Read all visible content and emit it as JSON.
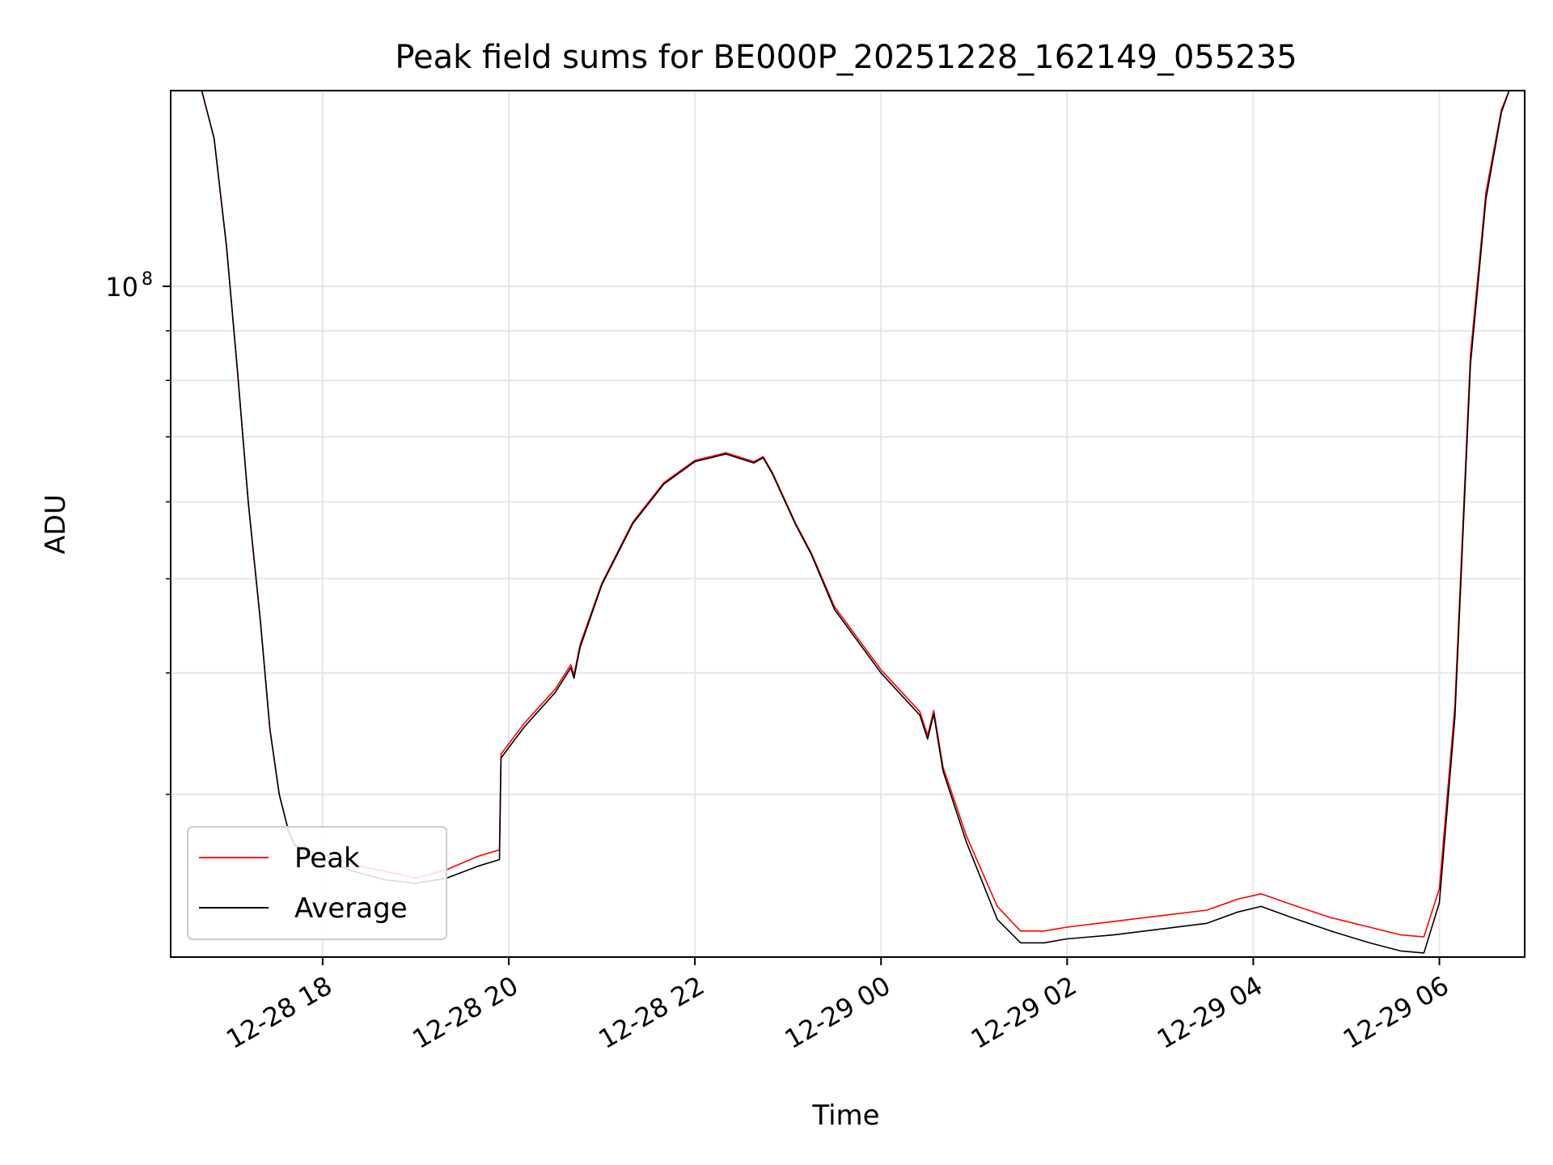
{
  "chart_data": {
    "type": "line",
    "title": "Peak field sums for BE000P_20251228_162149_055235",
    "xlabel": "Time",
    "ylabel": "ADU",
    "y_scale": "log",
    "ylim": [
      20400000,
      159000000
    ],
    "xlim": [
      "12-28 16:22",
      "12-29 06:55"
    ],
    "x_ticks": [
      "12-28 18",
      "12-28 20",
      "12-28 22",
      "12-29 00",
      "12-29 02",
      "12-29 04",
      "12-29 06"
    ],
    "y_ticks": [
      {
        "value": 100000000,
        "base": "10",
        "exp": "8"
      }
    ],
    "y_minor_ticks": [
      20000000,
      30000000,
      40000000,
      50000000,
      60000000,
      70000000,
      80000000,
      90000000,
      200000000
    ],
    "grid": true,
    "legend": {
      "position": "lower-left"
    },
    "series": [
      {
        "name": "Peak",
        "color": "#ff0000",
        "x": [
          "12-28 16:42",
          "12-28 16:50",
          "12-28 16:58",
          "12-28 17:05",
          "12-28 17:12",
          "12-28 17:20",
          "12-28 17:26",
          "12-28 17:32",
          "12-28 17:38",
          "12-28 17:42",
          "12-28 17:50",
          "12-28 18:05",
          "12-28 18:20",
          "12-28 18:40",
          "12-28 19:00",
          "12-28 19:20",
          "12-28 19:40",
          "12-28 19:54",
          "12-28 19:55",
          "12-28 20:10",
          "12-28 20:30",
          "12-28 20:40",
          "12-28 20:42",
          "12-28 20:46",
          "12-28 21:00",
          "12-28 21:20",
          "12-28 21:40",
          "12-28 22:00",
          "12-28 22:20",
          "12-28 22:38",
          "12-28 22:44",
          "12-28 22:50",
          "12-28 23:05",
          "12-28 23:15",
          "12-28 23:30",
          "12-29 00:00",
          "12-29 00:25",
          "12-29 00:30",
          "12-29 00:34",
          "12-29 00:40",
          "12-29 00:55",
          "12-29 01:15",
          "12-29 01:30",
          "12-29 01:45",
          "12-29 02:00",
          "12-29 02:30",
          "12-29 03:00",
          "12-29 03:30",
          "12-29 03:50",
          "12-29 04:05",
          "12-29 04:25",
          "12-29 04:50",
          "12-29 05:15",
          "12-29 05:35",
          "12-29 05:50",
          "12-29 06:00",
          "12-29 06:10",
          "12-29 06:20",
          "12-29 06:30",
          "12-29 06:40",
          "12-29 06:45"
        ],
        "y": [
          159000000,
          142000000,
          110000000,
          82000000,
          60000000,
          45000000,
          35000000,
          30000000,
          27500000,
          26600000,
          26300000,
          25900000,
          25400000,
          25000000,
          24600000,
          25100000,
          25900000,
          26300000,
          33000000,
          35500000,
          38500000,
          40800000,
          39800000,
          42800000,
          49500000,
          57200000,
          62800000,
          66200000,
          67400000,
          66000000,
          66800000,
          64300000,
          57000000,
          53200000,
          46800000,
          40300000,
          36500000,
          34500000,
          36600000,
          32000000,
          27200000,
          23000000,
          21700000,
          21700000,
          21900000,
          22200000,
          22500000,
          22800000,
          23400000,
          23700000,
          23100000,
          22400000,
          21900000,
          21500000,
          21400000,
          24000000,
          37000000,
          85000000,
          125000000,
          152000000,
          159000000
        ]
      },
      {
        "name": "Average",
        "color": "#000000",
        "x": [
          "12-28 16:42",
          "12-28 16:50",
          "12-28 16:58",
          "12-28 17:05",
          "12-28 17:12",
          "12-28 17:20",
          "12-28 17:26",
          "12-28 17:32",
          "12-28 17:38",
          "12-28 17:42",
          "12-28 17:50",
          "12-28 18:05",
          "12-28 18:20",
          "12-28 18:40",
          "12-28 19:00",
          "12-28 19:20",
          "12-28 19:40",
          "12-28 19:54",
          "12-28 19:55",
          "12-28 20:10",
          "12-28 20:30",
          "12-28 20:40",
          "12-28 20:42",
          "12-28 20:46",
          "12-28 21:00",
          "12-28 21:20",
          "12-28 21:40",
          "12-28 22:00",
          "12-28 22:20",
          "12-28 22:38",
          "12-28 22:44",
          "12-28 22:50",
          "12-28 23:05",
          "12-28 23:15",
          "12-28 23:30",
          "12-29 00:00",
          "12-29 00:25",
          "12-29 00:30",
          "12-29 00:34",
          "12-29 00:40",
          "12-29 00:55",
          "12-29 01:15",
          "12-29 01:30",
          "12-29 01:45",
          "12-29 02:00",
          "12-29 02:30",
          "12-29 03:00",
          "12-29 03:30",
          "12-29 03:50",
          "12-29 04:05",
          "12-29 04:25",
          "12-29 04:50",
          "12-29 05:15",
          "12-29 05:35",
          "12-29 05:50",
          "12-29 06:00",
          "12-29 06:10",
          "12-29 06:20",
          "12-29 06:30",
          "12-29 06:40",
          "12-29 06:45"
        ],
        "y": [
          159000000,
          142000000,
          110000000,
          82000000,
          60000000,
          45000000,
          35000000,
          30000000,
          27500000,
          26600000,
          26000000,
          25500000,
          25000000,
          24500000,
          24300000,
          24600000,
          25300000,
          25700000,
          32700000,
          35200000,
          38200000,
          40500000,
          39500000,
          42500000,
          49300000,
          57000000,
          62600000,
          66000000,
          67200000,
          65800000,
          66600000,
          64100000,
          56800000,
          53000000,
          46500000,
          40000000,
          36200000,
          34200000,
          36300000,
          31700000,
          26800000,
          22300000,
          21100000,
          21100000,
          21300000,
          21500000,
          21800000,
          22100000,
          22700000,
          23000000,
          22400000,
          21700000,
          21100000,
          20700000,
          20600000,
          23200000,
          36000000,
          83000000,
          123000000,
          151000000,
          159000000
        ]
      }
    ]
  }
}
